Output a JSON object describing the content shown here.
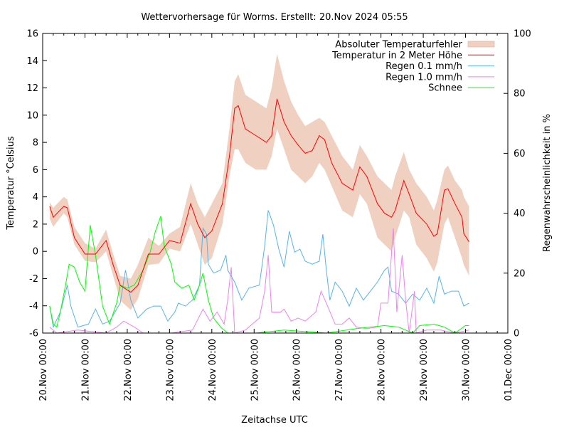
{
  "chart_data": {
    "type": "line",
    "title": "Wettervorhersage für Worms. Erstellt: 20.Nov 2024 05:55",
    "xlabel": "Zeitachse UTC",
    "ylabel": "Temperatur °Celsius",
    "y2label": "Regenwahrscheinlichkeit in %",
    "xlim": [
      "2024-11-20 00:00",
      "2024-12-01 00:00"
    ],
    "ylim": [
      -6,
      16
    ],
    "y2lim": [
      0,
      100
    ],
    "x_ticks": [
      "20.Nov 00:00",
      "21.Nov 00:00",
      "22.Nov 00:00",
      "23.Nov 00:00",
      "24.Nov 00:00",
      "25.Nov 00:00",
      "26.Nov 00:00",
      "27.Nov 00:00",
      "28.Nov 00:00",
      "29.Nov 00:00",
      "30.Nov 00:00",
      "01.Dec 00:00"
    ],
    "y_ticks": [
      "-6",
      "-4",
      "-2",
      "0",
      "2",
      "4",
      "6",
      "8",
      "10",
      "12",
      "14",
      "16"
    ],
    "y2_ticks": [
      "0",
      "20",
      "40",
      "60",
      "80",
      "100"
    ],
    "grid": false,
    "legend_position": "top-right",
    "legend": [
      {
        "label": "Absoluter Temperaturfehler",
        "kind": "band",
        "color": "#f0d0c0"
      },
      {
        "label": "Temperatur in 2 Meter Höhe",
        "kind": "line",
        "color": "#ff0000"
      },
      {
        "label": "Regen 0.1 mm/h",
        "kind": "line",
        "color": "#56b4e9"
      },
      {
        "label": "Regen 1.0 mm/h",
        "kind": "line",
        "color": "#ee82ee"
      },
      {
        "label": "Schnee",
        "kind": "line",
        "color": "#00ff00"
      }
    ],
    "temperature": {
      "name": "Temperatur in 2 Meter Höhe",
      "axis": "y",
      "columns": [
        "time",
        "value",
        "error_low",
        "error_high"
      ],
      "points": [
        [
          "2024-11-20 04:00",
          3.3,
          2.4,
          3.6
        ],
        [
          "2024-11-20 06:00",
          2.5,
          1.8,
          3.2
        ],
        [
          "2024-11-20 12:00",
          3.3,
          2.8,
          4.0
        ],
        [
          "2024-11-20 14:00",
          3.2,
          2.5,
          3.8
        ],
        [
          "2024-11-20 18:00",
          1.0,
          0.5,
          1.8
        ],
        [
          "2024-11-21 00:00",
          -0.2,
          -0.7,
          0.6
        ],
        [
          "2024-11-21 06:00",
          -0.2,
          -0.8,
          0.2
        ],
        [
          "2024-11-21 12:00",
          0.8,
          0.0,
          1.6
        ],
        [
          "2024-11-21 16:00",
          -1.0,
          -1.8,
          -0.2
        ],
        [
          "2024-11-21 20:00",
          -2.5,
          -3.6,
          -1.8
        ],
        [
          "2024-11-22 02:00",
          -3.0,
          -4.3,
          -2.0
        ],
        [
          "2024-11-22 06:00",
          -2.5,
          -3.5,
          -1.0
        ],
        [
          "2024-11-22 12:00",
          -0.2,
          -1.0,
          1.0
        ],
        [
          "2024-11-22 18:00",
          -0.2,
          -0.9,
          0.4
        ],
        [
          "2024-11-23 00:00",
          0.8,
          0.2,
          1.3
        ],
        [
          "2024-11-23 06:00",
          0.6,
          0.0,
          1.8
        ],
        [
          "2024-11-23 12:00",
          3.5,
          2.0,
          5.0
        ],
        [
          "2024-11-23 16:00",
          2.0,
          0.5,
          3.5
        ],
        [
          "2024-11-23 20:00",
          1.0,
          -1.0,
          2.5
        ],
        [
          "2024-11-24 00:00",
          1.5,
          -0.5,
          3.5
        ],
        [
          "2024-11-24 06:00",
          3.5,
          2.0,
          5.0
        ],
        [
          "2024-11-24 10:00",
          7.0,
          5.5,
          9.0
        ],
        [
          "2024-11-24 13:00",
          10.5,
          7.5,
          12.5
        ],
        [
          "2024-11-24 15:00",
          10.7,
          7.5,
          13.0
        ],
        [
          "2024-11-24 19:00",
          9.0,
          6.5,
          11.5
        ],
        [
          "2024-11-25 01:00",
          8.5,
          6.0,
          11.0
        ],
        [
          "2024-11-25 07:00",
          8.0,
          6.0,
          10.5
        ],
        [
          "2024-11-25 10:00",
          8.5,
          7.0,
          12.0
        ],
        [
          "2024-11-25 13:00",
          11.2,
          9.0,
          14.5
        ],
        [
          "2024-11-25 17:00",
          9.5,
          7.5,
          12.5
        ],
        [
          "2024-11-25 21:00",
          8.5,
          6.0,
          11.0
        ],
        [
          "2024-11-26 01:00",
          7.8,
          5.5,
          10.0
        ],
        [
          "2024-11-26 05:00",
          7.2,
          5.0,
          9.2
        ],
        [
          "2024-11-26 09:00",
          7.4,
          5.5,
          9.5
        ],
        [
          "2024-11-26 13:00",
          8.5,
          6.5,
          9.8
        ],
        [
          "2024-11-26 16:00",
          8.2,
          6.0,
          9.5
        ],
        [
          "2024-11-26 20:00",
          6.5,
          4.8,
          8.5
        ],
        [
          "2024-11-27 02:00",
          5.0,
          3.0,
          7.0
        ],
        [
          "2024-11-27 08:00",
          4.5,
          2.5,
          6.0
        ],
        [
          "2024-11-27 12:00",
          6.2,
          4.2,
          7.8
        ],
        [
          "2024-11-27 16:00",
          5.5,
          3.5,
          7.0
        ],
        [
          "2024-11-27 22:00",
          3.5,
          1.0,
          5.5
        ],
        [
          "2024-11-28 02:00",
          2.8,
          0.5,
          5.0
        ],
        [
          "2024-11-28 06:00",
          2.5,
          0.0,
          4.5
        ],
        [
          "2024-11-28 08:00",
          3.0,
          1.0,
          5.5
        ],
        [
          "2024-11-28 13:00",
          5.2,
          3.0,
          7.3
        ],
        [
          "2024-11-28 16:00",
          4.2,
          2.5,
          6.0
        ],
        [
          "2024-11-28 20:00",
          2.8,
          0.5,
          5.0
        ],
        [
          "2024-11-29 02:00",
          2.0,
          -0.5,
          4.0
        ],
        [
          "2024-11-29 06:00",
          1.1,
          -1.5,
          3.0
        ],
        [
          "2024-11-29 08:00",
          1.3,
          -0.8,
          3.8
        ],
        [
          "2024-11-29 12:00",
          4.5,
          2.0,
          6.0
        ],
        [
          "2024-11-29 14:00",
          4.6,
          2.5,
          6.3
        ],
        [
          "2024-11-29 18:00",
          3.5,
          1.0,
          5.2
        ],
        [
          "2024-11-29 22:00",
          2.5,
          -0.5,
          4.5
        ],
        [
          "2024-11-29 23:00",
          1.3,
          -1.0,
          4.0
        ],
        [
          "2024-11-30 02:00",
          0.7,
          -1.8,
          3.3
        ]
      ]
    },
    "series": [
      {
        "name": "Regen 0.1 mm/h",
        "axis": "y2",
        "color": "#56b4e9",
        "points": [
          [
            "2024-11-20 04:00",
            9
          ],
          [
            "2024-11-20 06:00",
            2
          ],
          [
            "2024-11-20 10:00",
            7
          ],
          [
            "2024-11-20 14:00",
            16
          ],
          [
            "2024-11-20 16:00",
            9
          ],
          [
            "2024-11-20 20:00",
            2
          ],
          [
            "2024-11-21 02:00",
            3
          ],
          [
            "2024-11-21 06:00",
            8
          ],
          [
            "2024-11-21 10:00",
            3
          ],
          [
            "2024-11-21 14:00",
            4
          ],
          [
            "2024-11-21 20:00",
            10
          ],
          [
            "2024-11-21 23:00",
            21
          ],
          [
            "2024-11-22 00:00",
            18
          ],
          [
            "2024-11-22 02:00",
            11
          ],
          [
            "2024-11-22 06:00",
            5
          ],
          [
            "2024-11-22 11:00",
            8
          ],
          [
            "2024-11-22 15:00",
            9
          ],
          [
            "2024-11-22 19:00",
            9
          ],
          [
            "2024-11-22 23:00",
            4
          ],
          [
            "2024-11-23 03:00",
            7
          ],
          [
            "2024-11-23 05:00",
            10
          ],
          [
            "2024-11-23 09:00",
            9
          ],
          [
            "2024-11-23 13:00",
            11
          ],
          [
            "2024-11-23 17:00",
            16
          ],
          [
            "2024-11-23 19:00",
            35
          ],
          [
            "2024-11-23 21:00",
            33
          ],
          [
            "2024-11-23 22:00",
            23
          ],
          [
            "2024-11-24 01:00",
            20
          ],
          [
            "2024-11-24 05:00",
            21
          ],
          [
            "2024-11-24 08:00",
            26
          ],
          [
            "2024-11-24 09:00",
            21
          ],
          [
            "2024-11-24 13:00",
            17
          ],
          [
            "2024-11-24 17:00",
            11
          ],
          [
            "2024-11-24 21:00",
            15
          ],
          [
            "2024-11-25 03:00",
            16
          ],
          [
            "2024-11-25 06:00",
            29
          ],
          [
            "2024-11-25 08:00",
            41
          ],
          [
            "2024-11-25 11:00",
            36
          ],
          [
            "2024-11-25 14:00",
            28
          ],
          [
            "2024-11-25 17:00",
            22
          ],
          [
            "2024-11-25 20:00",
            34
          ],
          [
            "2024-11-25 23:00",
            27
          ],
          [
            "2024-11-26 02:00",
            28
          ],
          [
            "2024-11-26 05:00",
            24
          ],
          [
            "2024-11-26 09:00",
            23
          ],
          [
            "2024-11-26 13:00",
            24
          ],
          [
            "2024-11-26 15:00",
            33
          ],
          [
            "2024-11-26 17:00",
            21
          ],
          [
            "2024-11-26 19:00",
            11
          ],
          [
            "2024-11-26 22:00",
            17
          ],
          [
            "2024-11-27 02:00",
            14
          ],
          [
            "2024-11-27 06:00",
            9
          ],
          [
            "2024-11-27 10:00",
            15
          ],
          [
            "2024-11-27 14:00",
            11
          ],
          [
            "2024-11-27 18:00",
            14
          ],
          [
            "2024-11-27 22:00",
            17
          ],
          [
            "2024-11-28 02:00",
            21
          ],
          [
            "2024-11-28 04:00",
            22
          ],
          [
            "2024-11-28 06:00",
            14
          ],
          [
            "2024-11-28 10:00",
            13
          ],
          [
            "2024-11-28 14:00",
            10
          ],
          [
            "2024-11-28 18:00",
            13
          ],
          [
            "2024-11-28 22:00",
            11
          ],
          [
            "2024-11-29 02:00",
            15
          ],
          [
            "2024-11-29 06:00",
            10
          ],
          [
            "2024-11-29 09:00",
            19
          ],
          [
            "2024-11-29 12:00",
            13
          ],
          [
            "2024-11-29 16:00",
            14
          ],
          [
            "2024-11-29 20:00",
            14
          ],
          [
            "2024-11-29 23:00",
            9
          ],
          [
            "2024-11-30 02:00",
            10
          ]
        ]
      },
      {
        "name": "Regen 1.0 mm/h",
        "axis": "y2",
        "color": "#ee82ee",
        "points": [
          [
            "2024-11-20 04:00",
            2
          ],
          [
            "2024-11-20 08:00",
            0
          ],
          [
            "2024-11-20 20:00",
            1
          ],
          [
            "2024-11-21 12:00",
            0
          ],
          [
            "2024-11-21 18:00",
            2
          ],
          [
            "2024-11-21 22:00",
            4
          ],
          [
            "2024-11-22 04:00",
            2
          ],
          [
            "2024-11-22 09:00",
            0
          ],
          [
            "2024-11-23 01:00",
            0
          ],
          [
            "2024-11-23 13:00",
            1
          ],
          [
            "2024-11-23 19:00",
            8
          ],
          [
            "2024-11-23 23:00",
            4
          ],
          [
            "2024-11-24 03:00",
            7
          ],
          [
            "2024-11-24 07:00",
            3
          ],
          [
            "2024-11-24 09:00",
            11
          ],
          [
            "2024-11-24 11:00",
            22
          ],
          [
            "2024-11-24 13:00",
            0
          ],
          [
            "2024-11-24 19:00",
            1
          ],
          [
            "2024-11-24 23:00",
            3
          ],
          [
            "2024-11-25 03:00",
            5
          ],
          [
            "2024-11-25 06:00",
            14
          ],
          [
            "2024-11-25 08:00",
            26
          ],
          [
            "2024-11-25 10:00",
            7
          ],
          [
            "2024-11-25 15:00",
            7
          ],
          [
            "2024-11-25 17:00",
            8
          ],
          [
            "2024-11-25 21:00",
            4
          ],
          [
            "2024-11-26 01:00",
            5
          ],
          [
            "2024-11-26 05:00",
            4
          ],
          [
            "2024-11-26 11:00",
            7
          ],
          [
            "2024-11-26 14:00",
            14
          ],
          [
            "2024-11-26 17:00",
            10
          ],
          [
            "2024-11-26 22:00",
            3
          ],
          [
            "2024-11-27 02:00",
            3
          ],
          [
            "2024-11-27 06:00",
            5
          ],
          [
            "2024-11-27 10:00",
            2
          ],
          [
            "2024-11-27 16:00",
            1.5
          ],
          [
            "2024-11-27 22:00",
            2
          ],
          [
            "2024-11-28 00:00",
            10
          ],
          [
            "2024-11-28 04:00",
            10
          ],
          [
            "2024-11-28 07:00",
            35
          ],
          [
            "2024-11-28 09:00",
            7
          ],
          [
            "2024-11-28 12:00",
            26
          ],
          [
            "2024-11-28 14:00",
            11
          ],
          [
            "2024-11-28 16:00",
            0
          ],
          [
            "2024-11-28 19:00",
            14
          ],
          [
            "2024-11-28 20:00",
            0
          ],
          [
            "2024-11-29 02:00",
            1
          ],
          [
            "2024-11-29 10:00",
            1
          ],
          [
            "2024-11-29 18:00",
            0
          ],
          [
            "2024-11-30 02:00",
            1
          ]
        ]
      },
      {
        "name": "Schnee",
        "axis": "y2",
        "color": "#00ff00",
        "points": [
          [
            "2024-11-20 04:00",
            9
          ],
          [
            "2024-11-20 06:00",
            3
          ],
          [
            "2024-11-20 08:00",
            2
          ],
          [
            "2024-11-20 10:00",
            7
          ],
          [
            "2024-11-20 13:00",
            16
          ],
          [
            "2024-11-20 15:00",
            23
          ],
          [
            "2024-11-20 18:00",
            22
          ],
          [
            "2024-11-20 21:00",
            17
          ],
          [
            "2024-11-21 00:00",
            14
          ],
          [
            "2024-11-21 03:00",
            36
          ],
          [
            "2024-11-21 06:00",
            26
          ],
          [
            "2024-11-21 10:00",
            9
          ],
          [
            "2024-11-21 14:00",
            3
          ],
          [
            "2024-11-21 18:00",
            10
          ],
          [
            "2024-11-21 20:00",
            16
          ],
          [
            "2024-11-22 00:00",
            15
          ],
          [
            "2024-11-22 04:00",
            16
          ],
          [
            "2024-11-22 09:00",
            21
          ],
          [
            "2024-11-22 13:00",
            27
          ],
          [
            "2024-11-22 16:00",
            34
          ],
          [
            "2024-11-22 19:00",
            39
          ],
          [
            "2024-11-22 21:00",
            29
          ],
          [
            "2024-11-23 01:00",
            23
          ],
          [
            "2024-11-23 03:00",
            17
          ],
          [
            "2024-11-23 07:00",
            15
          ],
          [
            "2024-11-23 11:00",
            16
          ],
          [
            "2024-11-23 14:00",
            11
          ],
          [
            "2024-11-23 17:00",
            16
          ],
          [
            "2024-11-23 19:00",
            20
          ],
          [
            "2024-11-23 22:00",
            11
          ],
          [
            "2024-11-24 01:00",
            5
          ],
          [
            "2024-11-24 05:00",
            2
          ],
          [
            "2024-11-24 09:00",
            0
          ],
          [
            "2024-11-24 17:00",
            0
          ],
          [
            "2024-11-25 01:00",
            0
          ],
          [
            "2024-11-25 17:00",
            1
          ],
          [
            "2024-11-26 17:00",
            0
          ],
          [
            "2024-11-27 10:00",
            1.5
          ],
          [
            "2024-11-28 02:00",
            2.5
          ],
          [
            "2024-11-28 10:00",
            2
          ],
          [
            "2024-11-28 18:00",
            0
          ],
          [
            "2024-11-28 22:00",
            2.5
          ],
          [
            "2024-11-29 06:00",
            3
          ],
          [
            "2024-11-29 12:00",
            2
          ],
          [
            "2024-11-29 18:00",
            0
          ],
          [
            "2024-11-30 00:00",
            2.5
          ],
          [
            "2024-11-30 02:00",
            2.5
          ]
        ]
      }
    ]
  }
}
